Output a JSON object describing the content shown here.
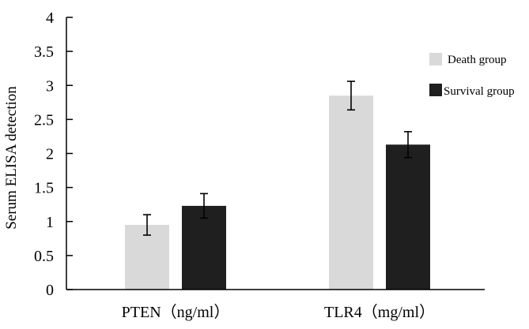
{
  "chart_data": {
    "type": "bar",
    "title": "",
    "xlabel": "",
    "ylabel": "Serum ELISA detection",
    "ylim": [
      0,
      4
    ],
    "yticks": [
      0,
      0.5,
      1,
      1.5,
      2,
      2.5,
      3,
      3.5,
      4
    ],
    "ytick_labels": [
      "0",
      "0.5",
      "1",
      "1.5",
      "2",
      "2.5",
      "3",
      "3.5",
      "4"
    ],
    "grid": false,
    "legend_position": "right",
    "categories": [
      "PTEN（ng/ml）",
      "TLR4（mg/ml）"
    ],
    "series": [
      {
        "name": "Death group",
        "color": "#d9d9d9",
        "values": [
          0.95,
          2.85
        ],
        "errors": [
          0.15,
          0.21
        ]
      },
      {
        "name": "Survival group",
        "color": "#1f1f1f",
        "values": [
          1.23,
          2.13
        ],
        "errors": [
          0.18,
          0.19
        ]
      }
    ]
  }
}
